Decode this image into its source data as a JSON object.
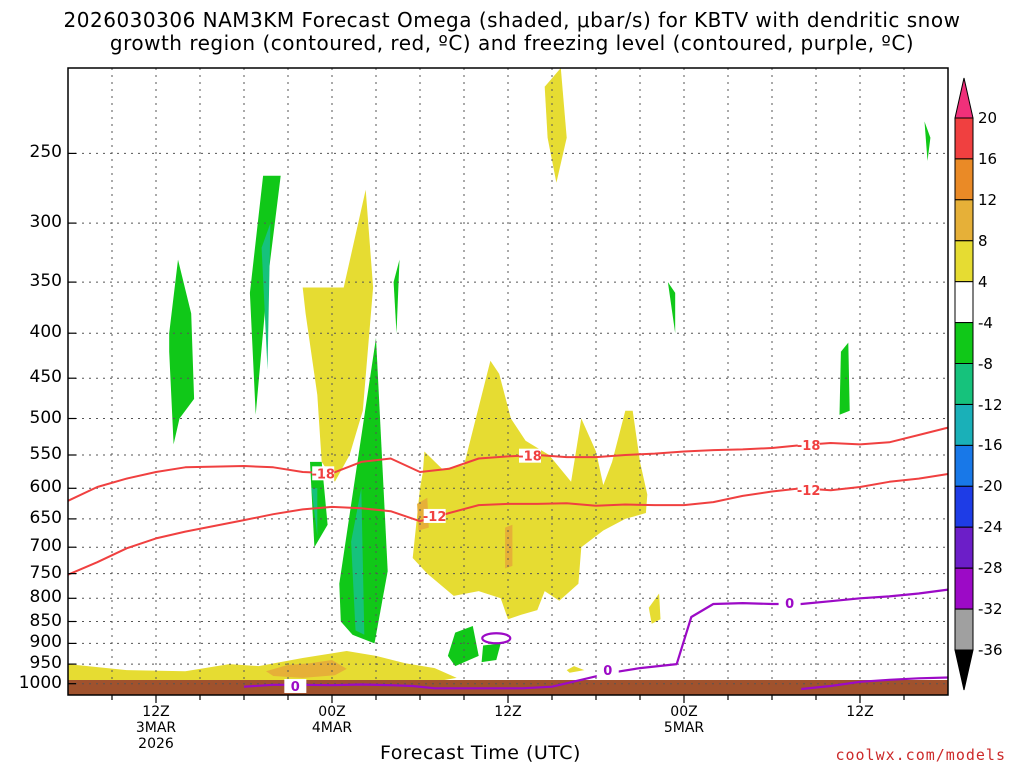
{
  "title": {
    "line1": "2026030306 NAM3KM Forecast Omega (shaded, μbar/s) for KBTV with dendritic snow",
    "line2": "growth region (contoured, red, ºC) and freezing level (contoured, purple, ºC)"
  },
  "credit": "coolwx.com/models",
  "chart_data": {
    "type": "heatmap",
    "xlabel": "Forecast Time (UTC)",
    "x_ticks": [
      {
        "hour": 12,
        "lines": [
          "12Z",
          "3MAR",
          "2026"
        ]
      },
      {
        "hour": 24,
        "lines": [
          "00Z",
          "4MAR"
        ]
      },
      {
        "hour": 36,
        "lines": [
          "12Z"
        ]
      },
      {
        "hour": 48,
        "lines": [
          "00Z",
          "5MAR"
        ]
      },
      {
        "hour": 60,
        "lines": [
          "12Z"
        ]
      }
    ],
    "xlim_hours": [
      6,
      66
    ],
    "y_scale": "log",
    "ylim_hPa": [
      1030,
      200
    ],
    "y_ticks": [
      250,
      300,
      350,
      400,
      450,
      500,
      550,
      600,
      650,
      700,
      750,
      800,
      850,
      900,
      950,
      1000
    ],
    "grid": true,
    "colorbar": {
      "levels": [
        "20",
        "16",
        "12",
        "8",
        "4",
        "-4",
        "-8",
        "-12",
        "-16",
        "-20",
        "-24",
        "-28",
        "-32",
        "-36"
      ],
      "colors": [
        "#f0307a",
        "#f04040",
        "#ea8a26",
        "#e6b038",
        "#e6dc32",
        "#ffffff",
        "#10c818",
        "#16c27c",
        "#1ab0b8",
        "#1878e8",
        "#1e3ce6",
        "#6c1ec8",
        "#9c0ac6",
        "#a0a0a0",
        "#000000"
      ]
    },
    "contour_labels": {
      "dgz": [
        "-18",
        "-12"
      ],
      "freezing": [
        "0"
      ]
    },
    "series": [
      {
        "name": "-18",
        "color": "#f04040",
        "kind": "dgz",
        "x": [
          6,
          8,
          10,
          12,
          14,
          16,
          18,
          20,
          22,
          24,
          26,
          28,
          30,
          32,
          34,
          36,
          38,
          40,
          42,
          44,
          46,
          48,
          50,
          52,
          54,
          56,
          58,
          60,
          62,
          64,
          66
        ],
        "p": [
          620,
          598,
          585,
          575,
          568,
          567,
          566,
          568,
          575,
          577,
          560,
          555,
          575,
          570,
          555,
          552,
          550,
          553,
          553,
          550,
          548,
          545,
          543,
          542,
          540,
          536,
          533,
          535,
          532,
          522,
          512
        ]
      },
      {
        "name": "-12",
        "color": "#f04040",
        "kind": "dgz",
        "x": [
          6,
          8,
          10,
          12,
          14,
          16,
          18,
          20,
          22,
          24,
          26,
          28,
          30,
          32,
          34,
          36,
          38,
          40,
          42,
          44,
          46,
          48,
          50,
          52,
          54,
          56,
          58,
          60,
          62,
          64,
          66
        ],
        "p": [
          752,
          728,
          702,
          684,
          672,
          662,
          652,
          642,
          634,
          630,
          632,
          637,
          654,
          640,
          627,
          625,
          625,
          624,
          628,
          626,
          627,
          627,
          622,
          612,
          605,
          600,
          603,
          598,
          590,
          585,
          578
        ]
      },
      {
        "name": "0",
        "color": "#9c0ac6",
        "kind": "freezing",
        "x": [
          18,
          20,
          22,
          24,
          26,
          28,
          29.5,
          31,
          33,
          35,
          37,
          39,
          41,
          43,
          45,
          47.5,
          48.5,
          50,
          52,
          54,
          56,
          58,
          60,
          62,
          64,
          66
        ],
        "p": [
          1008,
          1003,
          1003,
          1004,
          1002,
          1004,
          1006,
          1012,
          1012,
          1012,
          1012,
          1008,
          990,
          972,
          960,
          950,
          840,
          812,
          810,
          812,
          812,
          806,
          800,
          796,
          790,
          782
        ]
      },
      {
        "name": "0",
        "color": "#9c0ac6",
        "kind": "freezing-surface",
        "x": [
          56,
          58,
          60,
          62,
          64,
          66
        ],
        "p": [
          1014,
          1006,
          995,
          990,
          986,
          984
        ]
      }
    ],
    "omega_regions": [
      {
        "value": -6,
        "x": [
          12.9,
          13.5,
          14.4,
          14.6,
          13.6,
          13.2,
          12.9
        ],
        "p": [
          400,
          330,
          380,
          475,
          500,
          535,
          420
        ]
      },
      {
        "value": -6,
        "x": [
          18.4,
          19.3,
          20.5,
          19.6,
          18.8,
          18.4
        ],
        "p": [
          360,
          265,
          265,
          350,
          495,
          360
        ]
      },
      {
        "value": -10,
        "x": [
          19.2,
          19.8,
          19.6,
          19.2
        ],
        "p": [
          320,
          300,
          440,
          320
        ]
      },
      {
        "value": -6,
        "x": [
          22.5,
          23.3,
          23.7,
          22.8,
          22.5
        ],
        "p": [
          560,
          560,
          660,
          700,
          560
        ]
      },
      {
        "value": -10,
        "x": [
          22.6,
          23.0,
          23.0,
          22.6
        ],
        "p": [
          600,
          600,
          680,
          600
        ]
      },
      {
        "value": -6,
        "x": [
          24.5,
          27.0,
          27.8,
          26.9,
          25.4,
          24.6,
          24.5
        ],
        "p": [
          770,
          405,
          745,
          900,
          880,
          850,
          770
        ]
      },
      {
        "value": -10,
        "x": [
          25.3,
          26.0,
          26.2,
          25.6,
          25.3
        ],
        "p": [
          690,
          600,
          880,
          870,
          690
        ]
      },
      {
        "value": -6,
        "x": [
          28.2,
          28.6,
          28.4,
          28.2
        ],
        "p": [
          350,
          330,
          400,
          350
        ]
      },
      {
        "value": -6,
        "x": [
          32.4,
          33.6,
          34.0,
          32.4,
          31.9,
          32.4
        ],
        "p": [
          875,
          860,
          930,
          955,
          930,
          875
        ]
      },
      {
        "value": -6,
        "x": [
          34.3,
          35.5,
          35.2,
          34.2,
          34.3
        ],
        "p": [
          905,
          900,
          940,
          945,
          905
        ]
      },
      {
        "value": -6,
        "x": [
          46.9,
          47.4,
          47.4,
          46.9
        ],
        "p": [
          350,
          360,
          400,
          350
        ]
      },
      {
        "value": -6,
        "x": [
          58.7,
          59.2,
          59.3,
          58.6,
          58.7
        ],
        "p": [
          420,
          410,
          490,
          495,
          420
        ]
      },
      {
        "value": -6,
        "x": [
          64.4,
          64.8,
          64.6,
          64.4
        ],
        "p": [
          230,
          240,
          255,
          230
        ]
      },
      {
        "value": 6,
        "x": [
          38.5,
          39.6,
          40.0,
          39.3,
          38.7,
          38.5
        ],
        "p": [
          210,
          200,
          240,
          270,
          240,
          210
        ]
      },
      {
        "value": 6,
        "x": [
          22.0,
          24.8,
          26.3,
          26.8,
          26.1,
          25.2,
          24.2,
          23.3,
          23.0,
          22.2,
          22.0
        ],
        "p": [
          355,
          355,
          275,
          355,
          490,
          550,
          590,
          560,
          470,
          380,
          355
        ]
      },
      {
        "value": 6,
        "x": [
          29.5,
          30.0,
          30.2,
          30.3,
          31.5,
          33.0,
          34.8,
          35.4,
          36.2,
          37.2,
          38.8,
          40.3,
          41.0,
          42.0,
          42.5,
          43.1,
          44.0,
          44.5,
          45.0,
          45.5,
          45.4,
          44.0,
          42.5,
          41.0,
          40.8,
          39.5,
          38.5,
          38.0,
          36.9,
          36.0,
          35.5,
          34.0,
          32.3,
          30.5,
          29.5
        ],
        "p": [
          720,
          600,
          575,
          545,
          570,
          565,
          430,
          445,
          500,
          530,
          550,
          590,
          500,
          545,
          595,
          560,
          490,
          490,
          560,
          610,
          640,
          650,
          670,
          700,
          770,
          805,
          785,
          825,
          835,
          845,
          800,
          785,
          795,
          750,
          720
        ]
      },
      {
        "value": 10,
        "x": [
          29.8,
          30.5,
          30.6,
          29.9,
          29.8
        ],
        "p": [
          625,
          615,
          665,
          670,
          625
        ]
      },
      {
        "value": 10,
        "x": [
          35.8,
          36.3,
          36.3,
          35.8,
          35.8
        ],
        "p": [
          665,
          660,
          735,
          740,
          665
        ]
      },
      {
        "value": 6,
        "x": [
          45.6,
          46.3,
          46.4,
          45.8,
          45.6
        ],
        "p": [
          820,
          790,
          845,
          855,
          820
        ]
      },
      {
        "value": 6,
        "x": [
          40.0,
          40.5,
          41.2,
          40.2,
          40.0
        ],
        "p": [
          965,
          955,
          965,
          972,
          965
        ]
      },
      {
        "value": 6,
        "x": [
          6.0,
          10.0,
          14.0,
          17.0,
          19.0,
          22.0,
          25.0,
          27.0,
          29.0,
          31.0,
          32.5,
          29.0,
          25.0,
          20.0,
          15.0,
          10.0,
          6.0
        ],
        "p": [
          950,
          965,
          968,
          950,
          955,
          935,
          918,
          930,
          948,
          960,
          985,
          1008,
          1002,
          1005,
          1020,
          1025,
          1020
        ]
      },
      {
        "value": 10,
        "x": [
          19.5,
          21.0,
          22.5,
          24.0,
          25.0,
          24.2,
          22.0,
          20.0,
          19.5
        ],
        "p": [
          968,
          952,
          948,
          940,
          962,
          978,
          985,
          980,
          968
        ]
      }
    ]
  }
}
